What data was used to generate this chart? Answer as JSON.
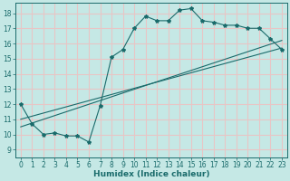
{
  "xlabel": "Humidex (Indice chaleur)",
  "ylabel": "",
  "xlim": [
    -0.5,
    23.5
  ],
  "ylim": [
    8.5,
    18.7
  ],
  "xticks": [
    0,
    1,
    2,
    3,
    4,
    5,
    6,
    7,
    8,
    9,
    10,
    11,
    12,
    13,
    14,
    15,
    16,
    17,
    18,
    19,
    20,
    21,
    22,
    23
  ],
  "yticks": [
    9,
    10,
    11,
    12,
    13,
    14,
    15,
    16,
    17,
    18
  ],
  "background_color": "#c5e8e5",
  "grid_color": "#e8c5c5",
  "line_color": "#1a6b6b",
  "main_line_x": [
    0,
    1,
    2,
    3,
    4,
    5,
    6,
    7,
    8,
    9,
    10,
    11,
    12,
    13,
    14,
    15,
    16,
    17,
    18,
    19,
    20,
    21,
    22,
    23
  ],
  "main_line_y": [
    12.0,
    10.7,
    10.0,
    10.1,
    9.9,
    9.9,
    9.5,
    11.9,
    15.1,
    15.6,
    17.0,
    17.8,
    17.5,
    17.5,
    18.2,
    18.3,
    17.5,
    17.4,
    17.2,
    17.2,
    17.0,
    17.0,
    16.3,
    15.6
  ],
  "line2_x": [
    0,
    23
  ],
  "line2_y": [
    10.5,
    16.2
  ],
  "line3_x": [
    0,
    23
  ],
  "line3_y": [
    11.0,
    15.7
  ],
  "xlabel_fontsize": 6.5,
  "tick_fontsize": 5.5
}
